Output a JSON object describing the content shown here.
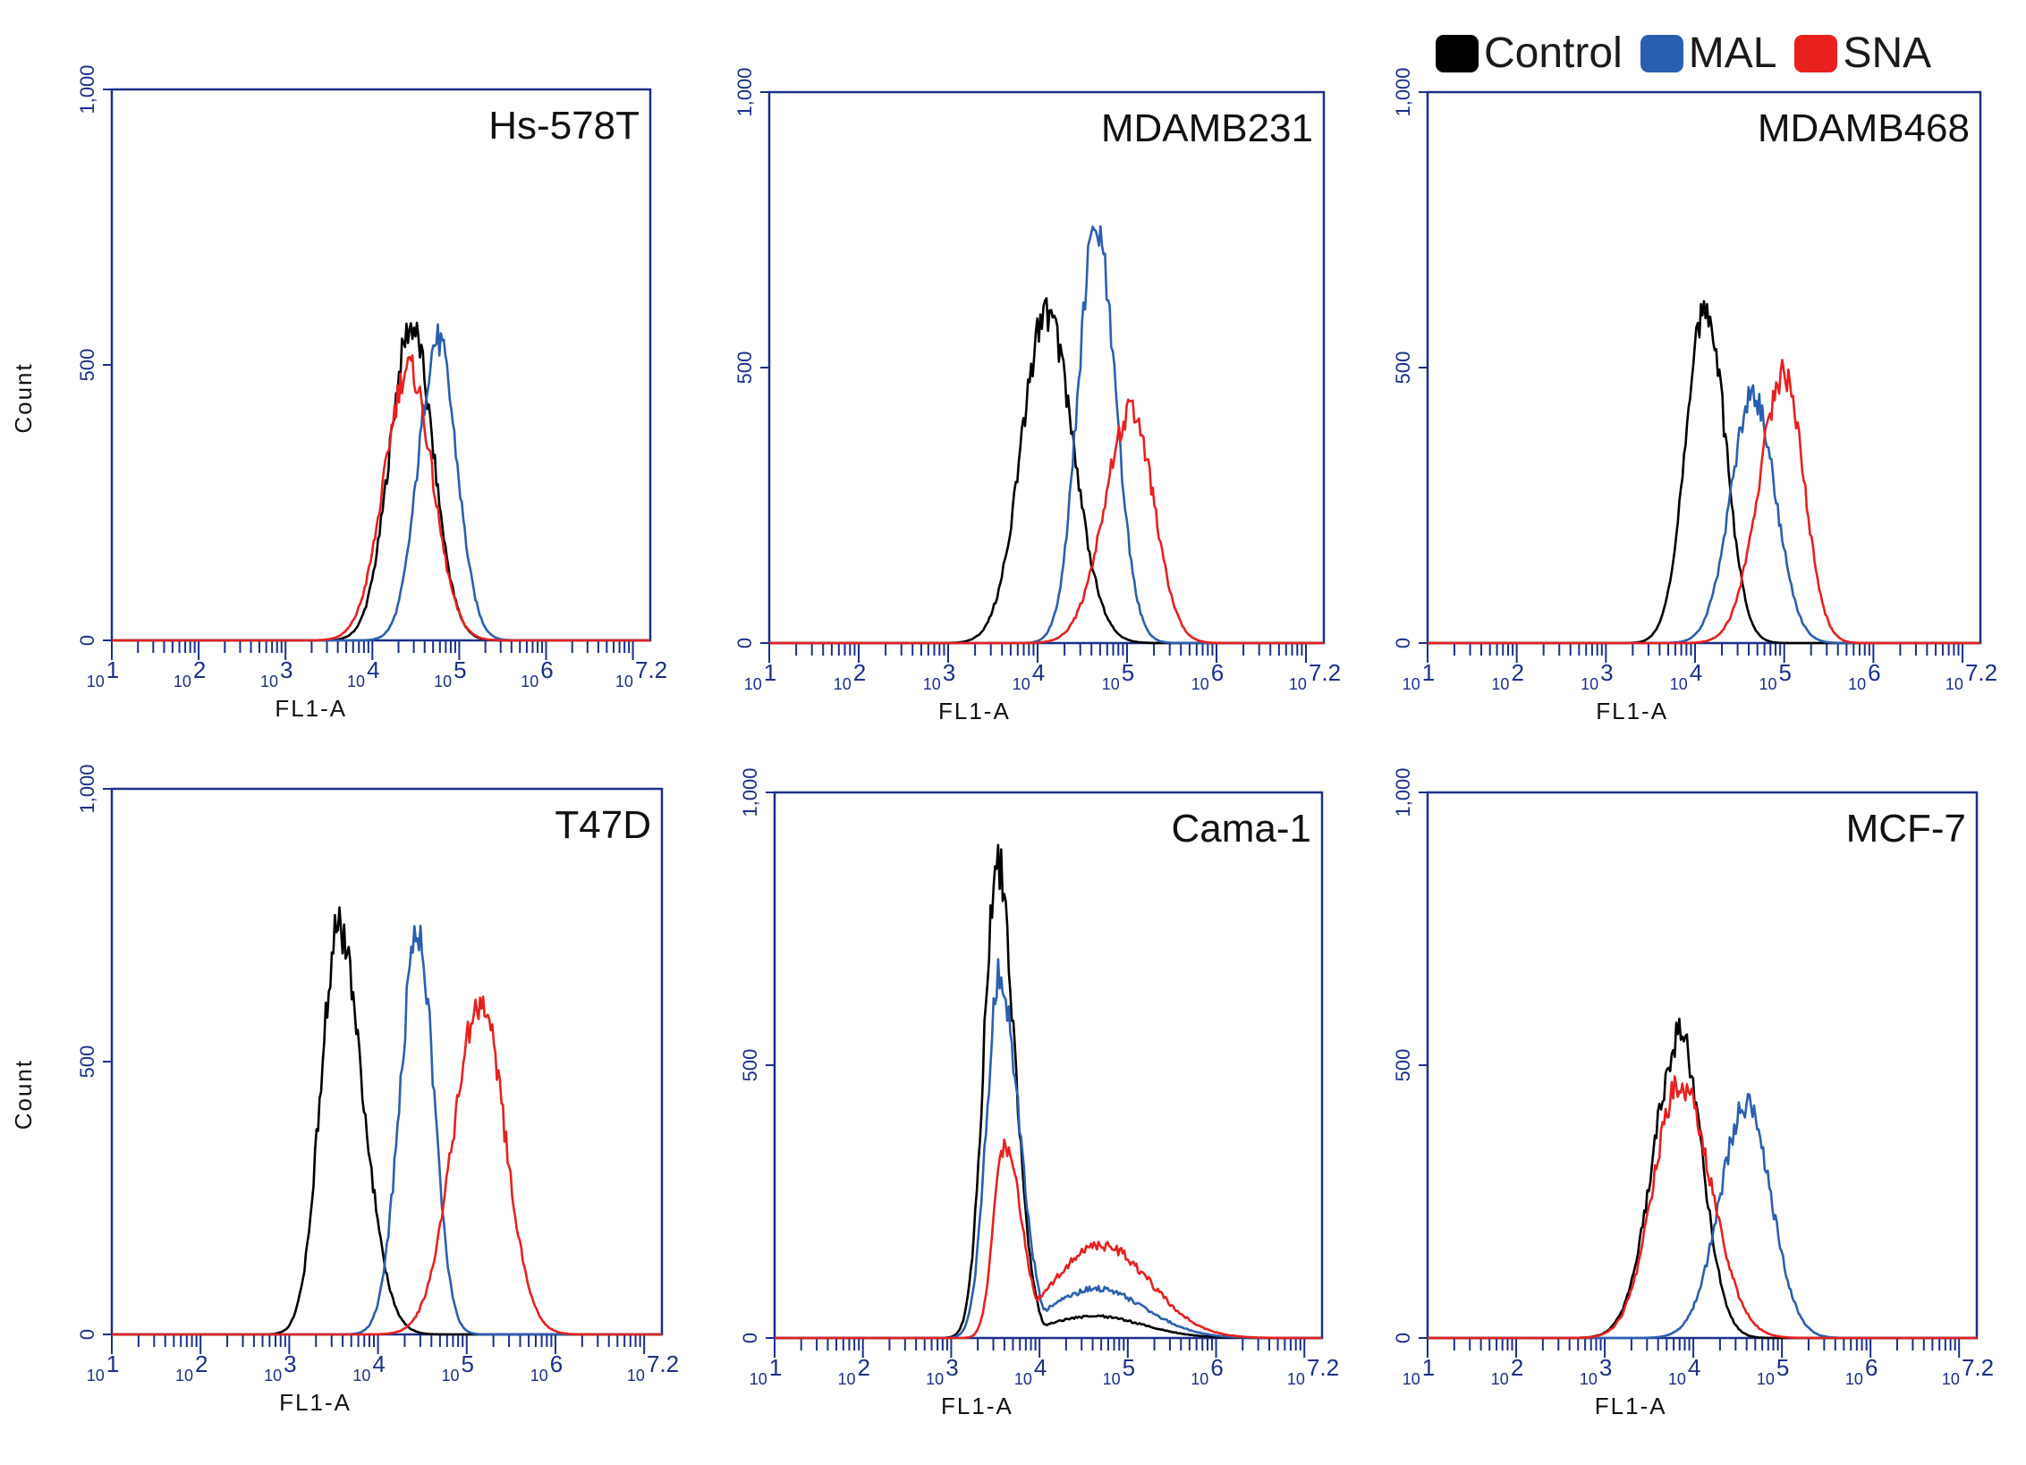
{
  "figure": {
    "legend": [
      {
        "label": "Control",
        "color": "#000000"
      },
      {
        "label": "MAL",
        "color": "#2a5fb0"
      },
      {
        "label": "SNA",
        "color": "#e8201e"
      }
    ],
    "axis_color": "#1a2f8a"
  },
  "chart_data": [
    {
      "type": "line",
      "title": "Hs-578T",
      "xlabel": "FL1-A",
      "ylabel": "Count",
      "xscale": "log10",
      "xlim": [
        1,
        7.2
      ],
      "ylim": [
        0,
        1000
      ],
      "x_ticks": [
        "10^1",
        "10^2",
        "10^3",
        "10^4",
        "10^5",
        "10^6",
        "10^7.2"
      ],
      "y_ticks": [
        "0",
        "500",
        "1,000"
      ],
      "series": [
        {
          "name": "Control",
          "color": "#000000",
          "peak_log": 4.45,
          "peak": 570,
          "sigma_left": 0.25,
          "sigma_right": 0.25,
          "tail": 0
        },
        {
          "name": "MAL",
          "color": "#2a5fb0",
          "peak_log": 4.75,
          "peak": 545,
          "sigma_left": 0.22,
          "sigma_right": 0.22,
          "tail": 0
        },
        {
          "name": "SNA",
          "color": "#e8201e",
          "peak_log": 4.42,
          "peak": 495,
          "sigma_left": 0.28,
          "sigma_right": 0.27,
          "tail": 0
        }
      ]
    },
    {
      "type": "line",
      "title": "MDAMB231",
      "xlabel": "FL1-A",
      "ylabel": "",
      "xscale": "log10",
      "xlim": [
        1,
        7.2
      ],
      "ylim": [
        0,
        1000
      ],
      "x_ticks": [
        "10^1",
        "10^2",
        "10^3",
        "10^4",
        "10^5",
        "10^6",
        "10^7.2"
      ],
      "y_ticks": [
        "0",
        "500",
        "1,000"
      ],
      "series": [
        {
          "name": "Control",
          "color": "#000000",
          "peak_log": 4.1,
          "peak": 600,
          "sigma_left": 0.28,
          "sigma_right": 0.3,
          "tail": 0
        },
        {
          "name": "MAL",
          "color": "#2a5fb0",
          "peak_log": 4.65,
          "peak": 750,
          "sigma_left": 0.2,
          "sigma_right": 0.22,
          "tail": 0
        },
        {
          "name": "SNA",
          "color": "#e8201e",
          "peak_log": 5.05,
          "peak": 420,
          "sigma_left": 0.3,
          "sigma_right": 0.25,
          "tail": 0
        }
      ]
    },
    {
      "type": "line",
      "title": "MDAMB468",
      "xlabel": "FL1-A",
      "ylabel": "",
      "xscale": "log10",
      "xlim": [
        1,
        7.2
      ],
      "ylim": [
        0,
        1000
      ],
      "x_ticks": [
        "10^1",
        "10^2",
        "10^3",
        "10^4",
        "10^5",
        "10^6",
        "10^7.2"
      ],
      "y_ticks": [
        "0",
        "500",
        "1,000"
      ],
      "series": [
        {
          "name": "Control",
          "color": "#000000",
          "peak_log": 4.12,
          "peak": 610,
          "sigma_left": 0.22,
          "sigma_right": 0.22,
          "tail": 0
        },
        {
          "name": "MAL",
          "color": "#2a5fb0",
          "peak_log": 4.65,
          "peak": 450,
          "sigma_left": 0.25,
          "sigma_right": 0.25,
          "tail": 0
        },
        {
          "name": "SNA",
          "color": "#e8201e",
          "peak_log": 5.0,
          "peak": 490,
          "sigma_left": 0.28,
          "sigma_right": 0.22,
          "tail": 0
        }
      ]
    },
    {
      "type": "line",
      "title": "T47D",
      "xlabel": "FL1-A",
      "ylabel": "Count",
      "xscale": "log10",
      "xlim": [
        1,
        7.2
      ],
      "ylim": [
        0,
        1000
      ],
      "x_ticks": [
        "10^1",
        "10^2",
        "10^3",
        "10^4",
        "10^5",
        "10^6",
        "10^7.2"
      ],
      "y_ticks": [
        "0",
        "500",
        "1,000"
      ],
      "series": [
        {
          "name": "Control",
          "color": "#000000",
          "peak_log": 3.55,
          "peak": 740,
          "sigma_left": 0.2,
          "sigma_right": 0.28,
          "tail": 0
        },
        {
          "name": "MAL",
          "color": "#2a5fb0",
          "peak_log": 4.45,
          "peak": 740,
          "sigma_left": 0.2,
          "sigma_right": 0.18,
          "tail": 0
        },
        {
          "name": "SNA",
          "color": "#e8201e",
          "peak_log": 5.15,
          "peak": 610,
          "sigma_left": 0.3,
          "sigma_right": 0.28,
          "tail": 0
        }
      ]
    },
    {
      "type": "line",
      "title": "Cama-1",
      "xlabel": "FL1-A",
      "ylabel": "",
      "xscale": "log10",
      "xlim": [
        1,
        7.2
      ],
      "ylim": [
        0,
        1000
      ],
      "x_ticks": [
        "10^1",
        "10^2",
        "10^3",
        "10^4",
        "10^5",
        "10^6",
        "10^7.2"
      ],
      "y_ticks": [
        "0",
        "500",
        "1,000"
      ],
      "series": [
        {
          "name": "Control",
          "color": "#000000",
          "peak_log": 3.52,
          "peak": 870,
          "sigma_left": 0.15,
          "sigma_right": 0.2,
          "tail": 40
        },
        {
          "name": "MAL",
          "color": "#2a5fb0",
          "peak_log": 3.55,
          "peak": 660,
          "sigma_left": 0.15,
          "sigma_right": 0.22,
          "tail": 90
        },
        {
          "name": "SNA",
          "color": "#e8201e",
          "peak_log": 3.6,
          "peak": 355,
          "sigma_left": 0.12,
          "sigma_right": 0.2,
          "tail": 170
        }
      ]
    },
    {
      "type": "line",
      "title": "MCF-7",
      "xlabel": "FL1-A",
      "ylabel": "",
      "xscale": "log10",
      "xlim": [
        1,
        7.2
      ],
      "ylim": [
        0,
        1000
      ],
      "x_ticks": [
        "10^1",
        "10^2",
        "10^3",
        "10^4",
        "10^5",
        "10^6",
        "10^7.2"
      ],
      "y_ticks": [
        "0",
        "500",
        "1,000"
      ],
      "series": [
        {
          "name": "Control",
          "color": "#000000",
          "peak_log": 3.85,
          "peak": 555,
          "sigma_left": 0.3,
          "sigma_right": 0.25,
          "tail": 0
        },
        {
          "name": "MAL",
          "color": "#2a5fb0",
          "peak_log": 4.6,
          "peak": 425,
          "sigma_left": 0.3,
          "sigma_right": 0.28,
          "tail": 0
        },
        {
          "name": "SNA",
          "color": "#e8201e",
          "peak_log": 3.85,
          "peak": 470,
          "sigma_left": 0.3,
          "sigma_right": 0.35,
          "tail": 0
        }
      ]
    }
  ]
}
